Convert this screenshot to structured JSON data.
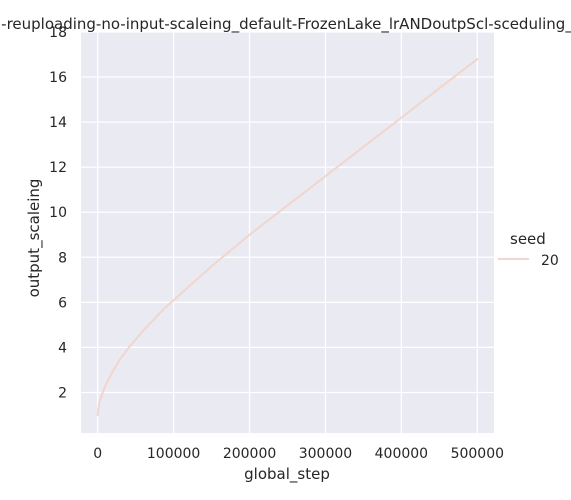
{
  "chart_data": {
    "type": "line",
    "title": "-reuploading-no-input-scaleing_default-FrozenLake_lrANDoutpScl-sceduling_",
    "xlabel": "global_step",
    "ylabel": "output_scaleing",
    "xlim": [
      -22000,
      522000
    ],
    "ylim": [
      0.2,
      18.0
    ],
    "xticks": [
      0,
      100000,
      200000,
      300000,
      400000,
      500000
    ],
    "xtick_labels": [
      "0",
      "100000",
      "200000",
      "300000",
      "400000",
      "500000"
    ],
    "yticks": [
      2,
      4,
      6,
      8,
      10,
      12,
      14,
      16,
      18
    ],
    "ytick_labels": [
      "2",
      "4",
      "6",
      "8",
      "10",
      "12",
      "14",
      "16",
      "18"
    ],
    "grid": true,
    "legend": {
      "title": "seed",
      "placement": "right",
      "entries": [
        "20"
      ]
    },
    "series": [
      {
        "name": "20",
        "color": "#f2d5cc",
        "x": [
          0,
          2000,
          5000,
          10000,
          20000,
          30000,
          40000,
          50000,
          60000,
          70000,
          80000,
          90000,
          100000,
          125000,
          150000,
          175000,
          200000,
          225000,
          250000,
          275000,
          300000,
          325000,
          350000,
          375000,
          400000,
          425000,
          450000,
          475000,
          500000
        ],
        "y": [
          1.0,
          1.55,
          1.85,
          2.3,
          2.95,
          3.5,
          3.95,
          4.35,
          4.75,
          5.1,
          5.45,
          5.8,
          6.1,
          6.85,
          7.6,
          8.3,
          9.0,
          9.65,
          10.3,
          10.95,
          11.6,
          12.25,
          12.9,
          13.55,
          14.2,
          14.85,
          15.5,
          16.15,
          16.8
        ]
      }
    ]
  },
  "style": {
    "axes_facecolor": "#eaeaf2",
    "grid_color": "#ffffff",
    "text_color": "#262626"
  }
}
